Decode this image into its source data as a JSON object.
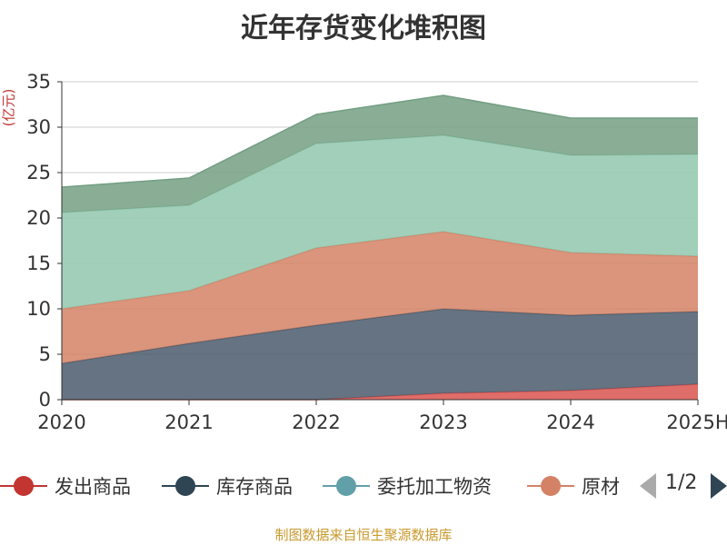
{
  "title": "近年存货变化堆积图",
  "y_unit": "(亿元)",
  "source": "制图数据来自恒生聚源数据库",
  "legend": [
    {
      "label": "发出商品",
      "color": "#c23531"
    },
    {
      "label": "库存商品",
      "color": "#2f4554"
    },
    {
      "label": "委托加工物资",
      "color": "#61a0a8"
    },
    {
      "label": "原材",
      "color": "#d48265"
    }
  ],
  "pager": {
    "text": "1/2"
  },
  "chart_data": {
    "type": "area",
    "stacked": true,
    "categories": [
      "2020",
      "2021",
      "2022",
      "2023",
      "2024",
      "2025H"
    ],
    "ylim": [
      0,
      35
    ],
    "yticks": [
      0,
      5,
      10,
      15,
      20,
      25,
      30,
      35
    ],
    "grid": true,
    "series": [
      {
        "name": "发出商品",
        "color": "#d9534f",
        "values": [
          0,
          0,
          0,
          0.7,
          1.0,
          1.7
        ]
      },
      {
        "name": "库存商品",
        "color": "#4a5b6c",
        "values": [
          4.0,
          6.2,
          8.2,
          9.3,
          8.3,
          8.0
        ]
      },
      {
        "color": "#d48265",
        "values": [
          6.0,
          5.8,
          8.5,
          8.5,
          6.9,
          6.1
        ]
      },
      {
        "color": "#91c7ae",
        "values": [
          10.6,
          9.4,
          11.5,
          10.6,
          10.7,
          11.2
        ]
      },
      {
        "color": "#749f83",
        "values": [
          2.8,
          3.0,
          3.2,
          4.4,
          4.1,
          4.0
        ]
      }
    ]
  }
}
